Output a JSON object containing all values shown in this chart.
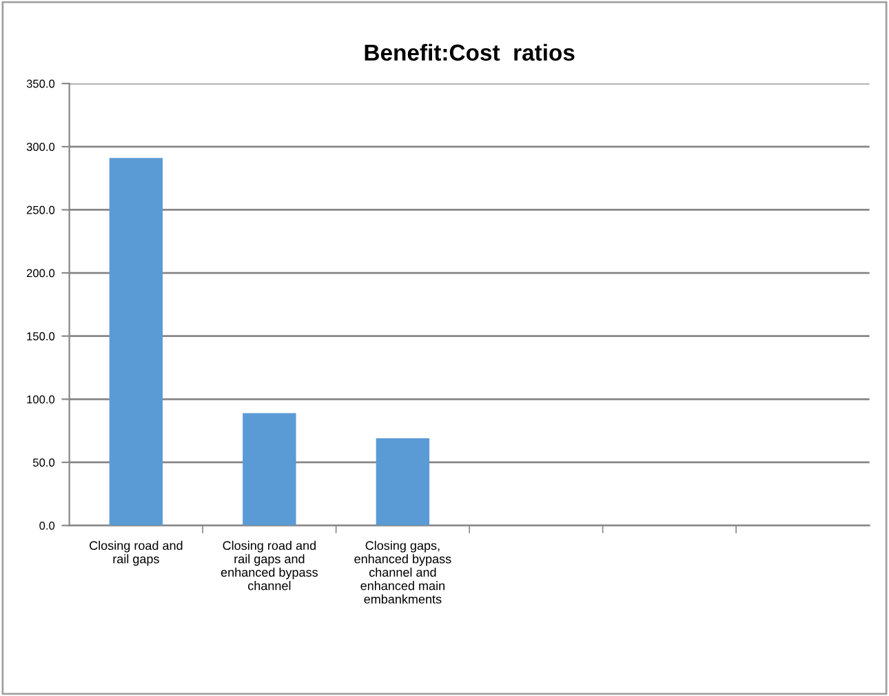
{
  "chart_data": {
    "type": "bar",
    "title": "Benefit:Cost  ratios",
    "categories": [
      "Closing road and rail gaps",
      "Closing road and rail gaps and enhanced bypass channel",
      "Closing gaps, enhanced bypass channel and enhanced main embankments",
      null,
      null,
      null
    ],
    "values": [
      291,
      89,
      69,
      null,
      null,
      null
    ],
    "color": "#5b9bd5",
    "ylim": [
      0,
      350
    ],
    "yticks": [
      {
        "value": 0,
        "label": "0.0"
      },
      {
        "value": 50,
        "label": "50.0"
      },
      {
        "value": 100,
        "label": "100.0"
      },
      {
        "value": 150,
        "label": "150.0"
      },
      {
        "value": 200,
        "label": "200.0"
      },
      {
        "value": 250,
        "label": "250.0"
      },
      {
        "value": 300,
        "label": "300.0"
      },
      {
        "value": 350,
        "label": "350.0"
      }
    ],
    "grid": "y"
  }
}
